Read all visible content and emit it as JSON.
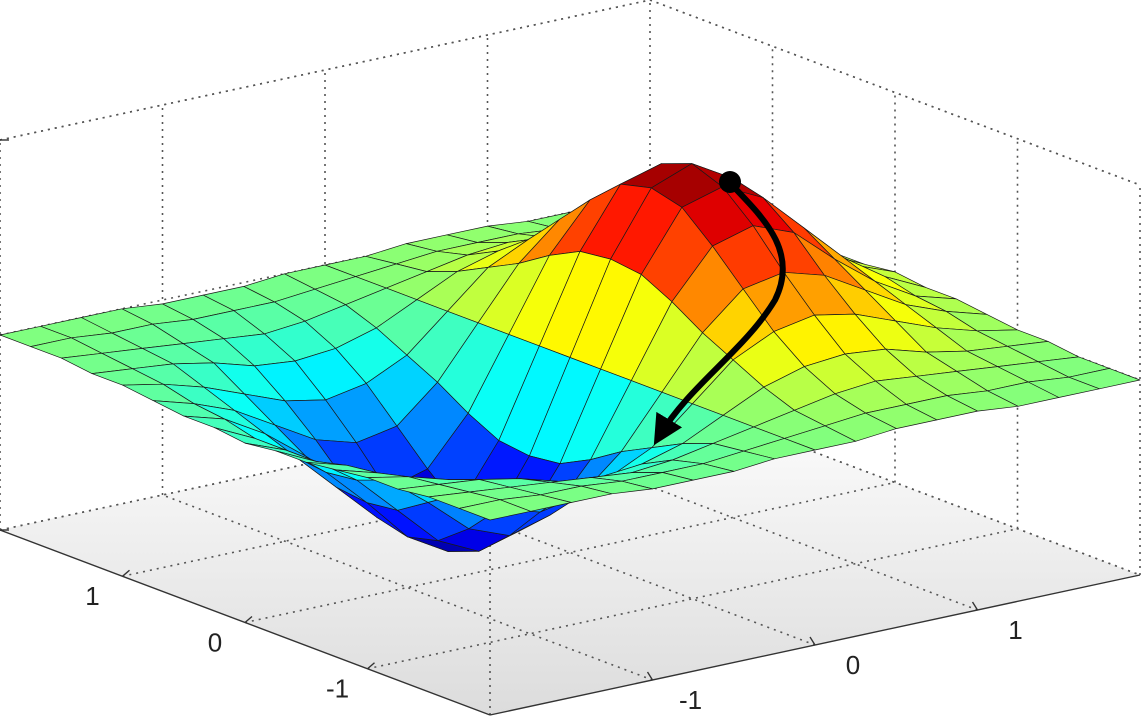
{
  "chart_data": {
    "type": "surface",
    "colormap": "jet",
    "grid": true,
    "x": [
      -2,
      -1.75,
      -1.5,
      -1.25,
      -1,
      -0.75,
      -0.5,
      -0.25,
      0,
      0.25,
      0.5,
      0.75,
      1,
      1.25,
      1.5,
      1.75,
      2
    ],
    "y": [
      -2,
      -1.75,
      -1.5,
      -1.25,
      -1,
      -0.75,
      -0.5,
      -0.25,
      0,
      0.25,
      0.5,
      0.75,
      1,
      1.25,
      1.5,
      1.75,
      2
    ],
    "z": [
      [
        0,
        0,
        0,
        0,
        -0.01,
        -0.01,
        -0.01,
        0,
        0,
        0,
        0.01,
        0.01,
        0.01,
        0,
        0,
        0,
        0
      ],
      [
        0,
        0,
        -0.01,
        -0.01,
        -0.02,
        -0.02,
        -0.02,
        -0.01,
        0,
        0.01,
        0.02,
        0.02,
        0.02,
        0.01,
        0.01,
        0,
        0
      ],
      [
        0,
        -0.01,
        -0.02,
        -0.03,
        -0.04,
        -0.05,
        -0.04,
        -0.02,
        0,
        0.02,
        0.04,
        0.05,
        0.04,
        0.03,
        0.02,
        0.01,
        0
      ],
      [
        -0.01,
        -0.02,
        -0.03,
        -0.05,
        -0.08,
        -0.09,
        -0.08,
        -0.05,
        0,
        0.05,
        0.08,
        0.09,
        0.08,
        0.05,
        0.03,
        0.02,
        0.01
      ],
      [
        -0.01,
        -0.03,
        -0.06,
        -0.1,
        -0.14,
        -0.16,
        -0.14,
        -0.09,
        0,
        0.09,
        0.14,
        0.16,
        0.14,
        0.1,
        0.06,
        0.03,
        0.01
      ],
      [
        -0.02,
        -0.05,
        -0.09,
        -0.15,
        -0.21,
        -0.24,
        -0.22,
        -0.13,
        0,
        0.13,
        0.22,
        0.24,
        0.21,
        0.15,
        0.09,
        0.05,
        0.02
      ],
      [
        -0.03,
        -0.06,
        -0.12,
        -0.2,
        -0.29,
        -0.33,
        -0.3,
        -0.18,
        0,
        0.18,
        0.3,
        0.33,
        0.29,
        0.2,
        0.12,
        0.06,
        0.03
      ],
      [
        -0.03,
        -0.08,
        -0.15,
        -0.25,
        -0.35,
        -0.4,
        -0.37,
        -0.22,
        0,
        0.22,
        0.37,
        0.4,
        0.35,
        0.25,
        0.15,
        0.08,
        0.03
      ],
      [
        -0.04,
        -0.08,
        -0.16,
        -0.26,
        -0.37,
        -0.43,
        -0.39,
        -0.23,
        0,
        0.23,
        0.39,
        0.43,
        0.37,
        0.26,
        0.16,
        0.08,
        0.04
      ],
      [
        -0.03,
        -0.08,
        -0.15,
        -0.25,
        -0.35,
        -0.4,
        -0.37,
        -0.22,
        0,
        0.22,
        0.37,
        0.4,
        0.35,
        0.25,
        0.15,
        0.08,
        0.03
      ],
      [
        -0.03,
        -0.06,
        -0.12,
        -0.2,
        -0.29,
        -0.33,
        -0.3,
        -0.18,
        0,
        0.18,
        0.3,
        0.33,
        0.29,
        0.2,
        0.12,
        0.06,
        0.03
      ],
      [
        -0.02,
        -0.05,
        -0.09,
        -0.15,
        -0.21,
        -0.24,
        -0.22,
        -0.13,
        0,
        0.13,
        0.22,
        0.24,
        0.21,
        0.15,
        0.09,
        0.05,
        0.02
      ],
      [
        -0.01,
        -0.03,
        -0.06,
        -0.1,
        -0.14,
        -0.16,
        -0.14,
        -0.09,
        0,
        0.09,
        0.14,
        0.16,
        0.14,
        0.1,
        0.06,
        0.03,
        0.01
      ],
      [
        -0.01,
        -0.02,
        -0.03,
        -0.05,
        -0.08,
        -0.09,
        -0.08,
        -0.05,
        0,
        0.05,
        0.08,
        0.09,
        0.08,
        0.05,
        0.03,
        0.02,
        0.01
      ],
      [
        0,
        -0.01,
        -0.02,
        -0.03,
        -0.04,
        -0.05,
        -0.04,
        -0.02,
        0,
        0.02,
        0.04,
        0.05,
        0.04,
        0.03,
        0.02,
        0.01,
        0
      ],
      [
        0,
        0,
        -0.01,
        -0.01,
        -0.02,
        -0.02,
        -0.02,
        -0.01,
        0,
        0.01,
        0.02,
        0.02,
        0.02,
        0.01,
        0.01,
        0,
        0
      ],
      [
        0,
        0,
        0,
        0,
        -0.01,
        -0.01,
        -0.01,
        0,
        0,
        0,
        0.01,
        0.01,
        0.01,
        0,
        0,
        0,
        0
      ]
    ],
    "xlim": [
      -2,
      2
    ],
    "ylim": [
      -2,
      2
    ],
    "zlim": [
      -0.5,
      0.5
    ],
    "xticks": [
      -1,
      0,
      1
    ],
    "yticks": [
      -1,
      0,
      1
    ],
    "zticks": [
      -0.5,
      0,
      0.5
    ]
  }
}
